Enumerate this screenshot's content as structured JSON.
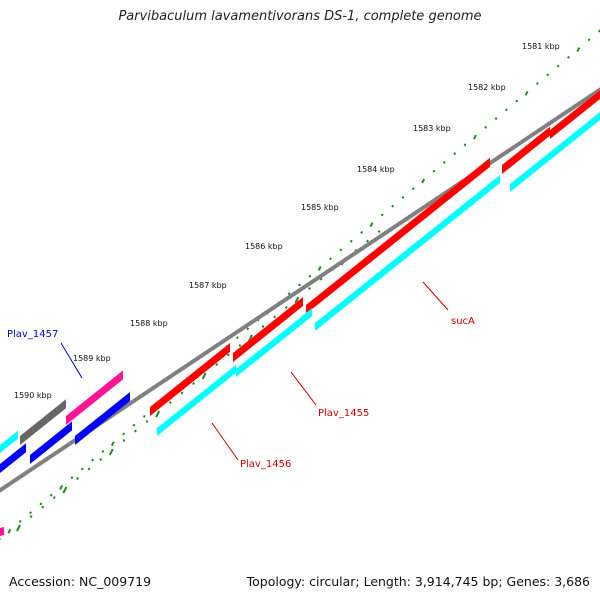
{
  "title": "Parvibaculum lavamentivorans DS-1, complete genome",
  "accession": "Accession: NC_009719",
  "summary": "Topology: circular; Length: 3,914,745 bp; Genes: 3,686",
  "ruler_labels": [
    "1581 kbp",
    "1582 kbp",
    "1583 kbp",
    "1584 kbp",
    "1585 kbp",
    "1586 kbp",
    "1587 kbp",
    "1588 kbp",
    "1589 kbp",
    "1590 kbp"
  ],
  "genes": [
    {
      "label": "sucA",
      "strand": "plus",
      "color": "#ff0000"
    },
    {
      "label": "Plav_1455",
      "strand": "minus",
      "color": "#00ffff"
    },
    {
      "label": "Plav_1456",
      "strand": "minus",
      "color": "#00ffff"
    },
    {
      "label": "Plav_1457",
      "strand": "plus",
      "color": "#ff1493"
    }
  ],
  "colors": {
    "forward_cds": "#ff0000",
    "reverse_cds": "#00ffff",
    "highlight": "#ff1493",
    "other_forward": "#0000ff",
    "grey_feature": "#666666",
    "backbone": "#808080",
    "ruler": "#228b22",
    "label_red": "#cc0000",
    "label_blue": "#0000cc"
  }
}
